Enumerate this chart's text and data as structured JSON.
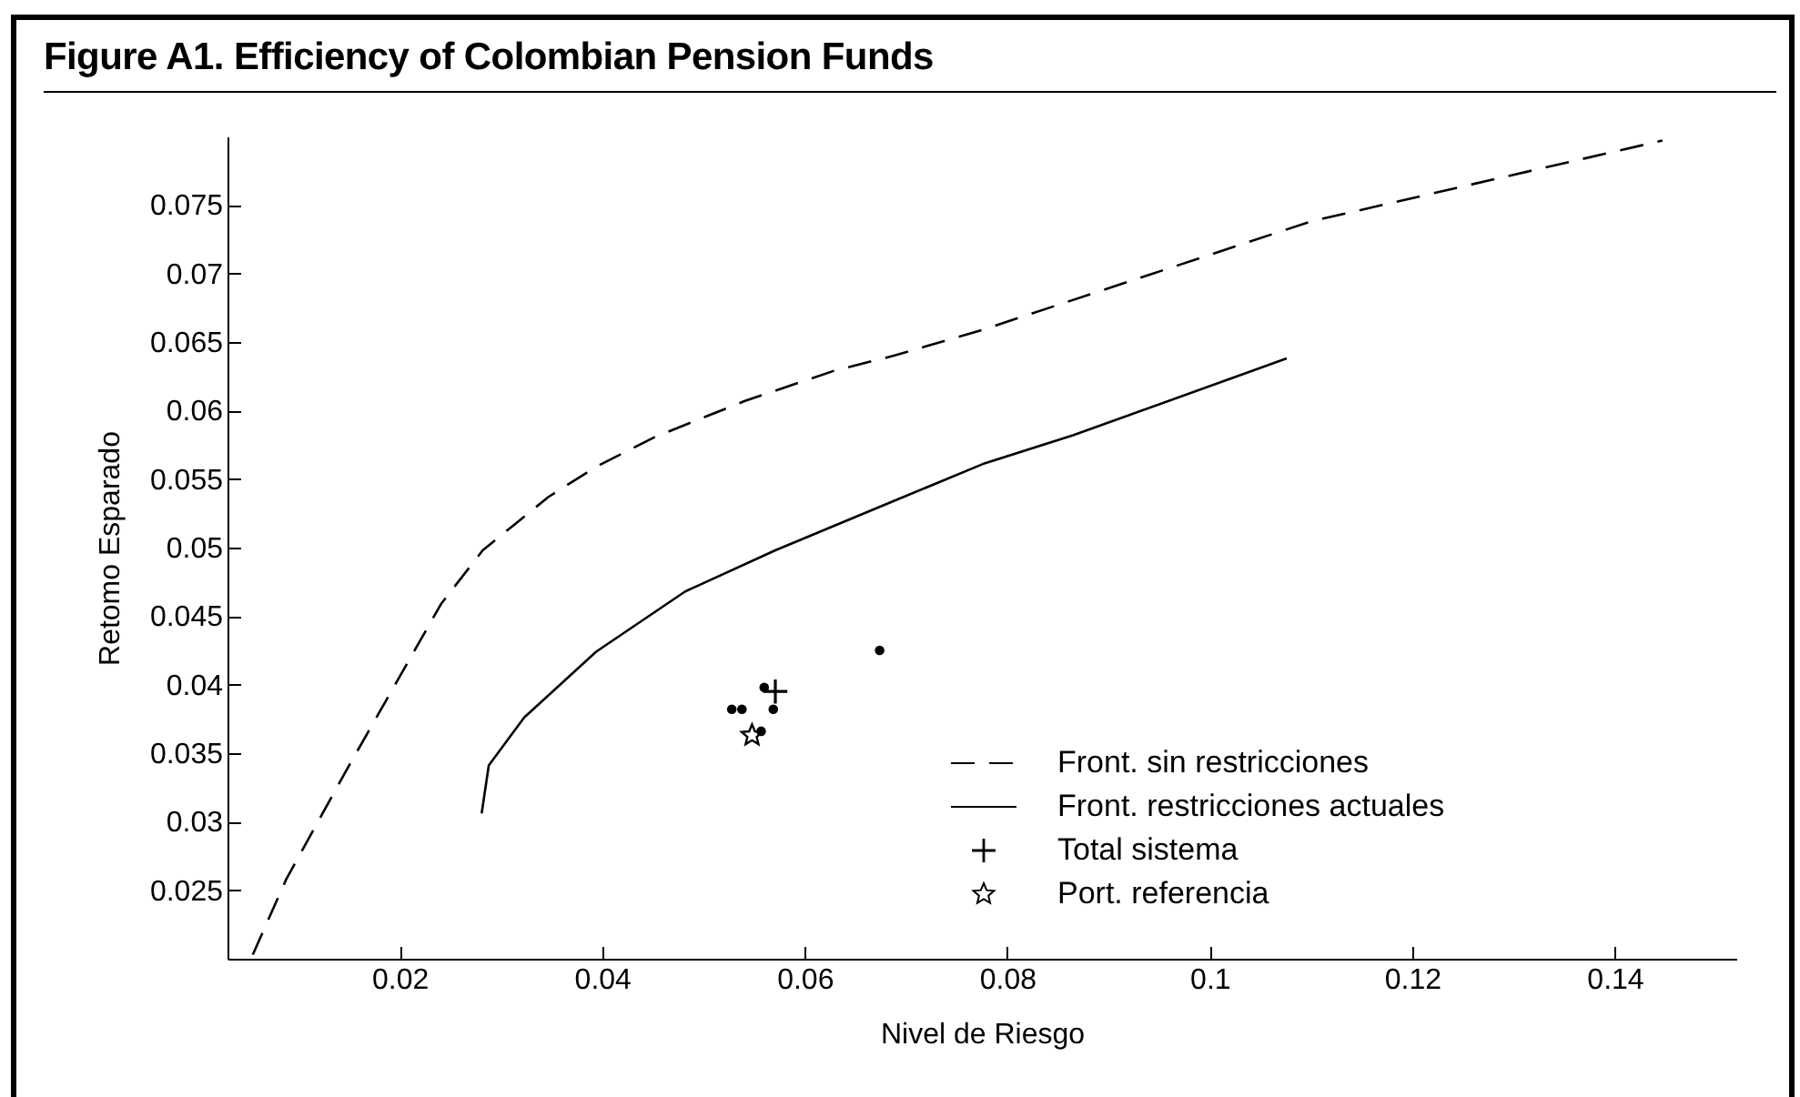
{
  "chart_data": {
    "type": "line",
    "title": "Figure A1.  Efficiency of Colombian Pension Funds",
    "xlabel": "Nivel de Riesgo",
    "ylabel": "Retomo Esparado",
    "xlim": [
      0.003,
      0.152
    ],
    "ylim": [
      0.02,
      0.08
    ],
    "xticks": [
      0.02,
      0.04,
      0.06,
      0.08,
      0.1,
      0.12,
      0.14
    ],
    "yticks": [
      0.025,
      0.03,
      0.035,
      0.04,
      0.045,
      0.05,
      0.055,
      0.06,
      0.065,
      0.07,
      0.075
    ],
    "legend": "bottom right",
    "series": [
      {
        "name": "Front. sin restricciones",
        "type": "line",
        "line_style": "dashed",
        "color": "#000000",
        "x": [
          0.0055,
          0.0088,
          0.0147,
          0.0194,
          0.0241,
          0.0282,
          0.0312,
          0.0347,
          0.0394,
          0.0453,
          0.0541,
          0.0629,
          0.0688,
          0.0776,
          0.11,
          0.1447
        ],
        "values": [
          0.0203,
          0.0258,
          0.0337,
          0.0398,
          0.0459,
          0.0498,
          0.0516,
          0.0537,
          0.0559,
          0.0581,
          0.0607,
          0.0629,
          0.064,
          0.0659,
          0.0738,
          0.0797
        ]
      },
      {
        "name": "Front. restricciones actuales",
        "type": "line",
        "line_style": "solid",
        "color": "#000000",
        "x": [
          0.0281,
          0.0288,
          0.0323,
          0.0394,
          0.0482,
          0.0571,
          0.0688,
          0.0776,
          0.0865,
          0.1076
        ],
        "values": [
          0.0306,
          0.0341,
          0.0376,
          0.0424,
          0.0468,
          0.0498,
          0.0534,
          0.0561,
          0.0582,
          0.0638
        ]
      },
      {
        "name": "Total sistema",
        "type": "scatter",
        "marker": "cross",
        "color": "#000000",
        "x": [
          0.0571
        ],
        "values": [
          0.0395
        ]
      },
      {
        "name": "Port. referencia",
        "type": "scatter",
        "marker": "star",
        "color": "#000000",
        "x": [
          0.0548
        ],
        "values": [
          0.0363
        ]
      },
      {
        "type": "scatter",
        "marker": "circle",
        "color": "#000000",
        "x": [
          0.0528,
          0.0538,
          0.056,
          0.0569,
          0.0557,
          0.0674
        ],
        "values": [
          0.0382,
          0.0382,
          0.0398,
          0.0382,
          0.0366,
          0.0425
        ]
      }
    ]
  }
}
